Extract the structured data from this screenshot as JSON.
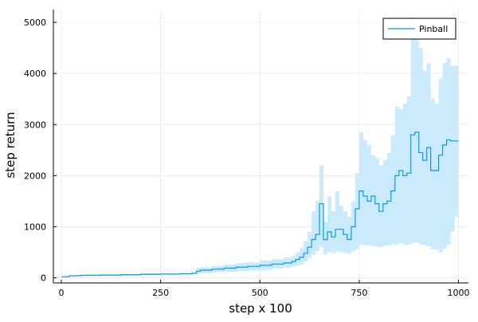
{
  "colors": {
    "series_line": "#009af9",
    "band_fill": "#cceafd",
    "grid": "#ececec",
    "axis": "#000000",
    "background": "#ffffff"
  },
  "chart_data": {
    "type": "line",
    "title": "",
    "xlabel": "step x 100",
    "ylabel": "step return",
    "xlim": [
      -20,
      1025
    ],
    "ylim": [
      -100,
      5250
    ],
    "xticks": [
      0,
      250,
      500,
      750,
      1000
    ],
    "yticks": [
      0,
      1000,
      2000,
      3000,
      4000,
      5000
    ],
    "xtick_labels": [
      "0",
      "250",
      "500",
      "750",
      "1000"
    ],
    "ytick_labels": [
      "0",
      "1000",
      "2000",
      "3000",
      "4000",
      "5000"
    ],
    "grid": true,
    "legend_position": "top-right",
    "series": [
      {
        "name": "Pinball",
        "style": "step",
        "x": [
          0,
          20,
          50,
          100,
          150,
          200,
          250,
          300,
          330,
          340,
          350,
          380,
          410,
          440,
          470,
          500,
          530,
          560,
          580,
          590,
          600,
          610,
          620,
          630,
          640,
          650,
          660,
          670,
          680,
          690,
          700,
          710,
          720,
          730,
          740,
          750,
          760,
          770,
          780,
          790,
          800,
          810,
          820,
          830,
          840,
          850,
          860,
          870,
          880,
          890,
          900,
          910,
          920,
          930,
          940,
          950,
          960,
          970,
          980,
          990,
          1000
        ],
        "mean": [
          20,
          40,
          50,
          55,
          62,
          70,
          75,
          80,
          90,
          130,
          150,
          170,
          190,
          210,
          225,
          245,
          270,
          290,
          320,
          360,
          400,
          480,
          600,
          750,
          850,
          1450,
          750,
          900,
          800,
          950,
          950,
          850,
          750,
          1000,
          1350,
          1700,
          1600,
          1500,
          1600,
          1450,
          1300,
          1450,
          1500,
          1700,
          2000,
          2100,
          2000,
          2050,
          2800,
          2850,
          2450,
          2300,
          2550,
          2100,
          2100,
          2400,
          2600,
          2700,
          2680,
          2680,
          2680
        ],
        "lower": [
          10,
          30,
          40,
          45,
          50,
          55,
          60,
          65,
          70,
          80,
          95,
          110,
          120,
          130,
          140,
          155,
          180,
          200,
          220,
          240,
          260,
          320,
          380,
          450,
          520,
          600,
          450,
          500,
          480,
          520,
          500,
          480,
          470,
          520,
          560,
          650,
          640,
          640,
          620,
          610,
          600,
          620,
          640,
          660,
          650,
          680,
          650,
          650,
          680,
          700,
          650,
          640,
          620,
          560,
          550,
          500,
          570,
          650,
          900,
          1200,
          1200
        ],
        "upper": [
          30,
          50,
          60,
          65,
          72,
          82,
          90,
          95,
          110,
          200,
          210,
          230,
          260,
          290,
          310,
          340,
          370,
          400,
          430,
          500,
          580,
          720,
          900,
          1300,
          1500,
          2200,
          1100,
          1600,
          1300,
          1700,
          1400,
          1300,
          1200,
          1500,
          2050,
          2850,
          2700,
          2600,
          2400,
          2350,
          2200,
          2300,
          2450,
          2800,
          3350,
          3300,
          3400,
          3550,
          5100,
          4800,
          4500,
          4050,
          4200,
          3500,
          3400,
          3900,
          4200,
          4300,
          4150,
          4150,
          4150
        ]
      }
    ]
  }
}
